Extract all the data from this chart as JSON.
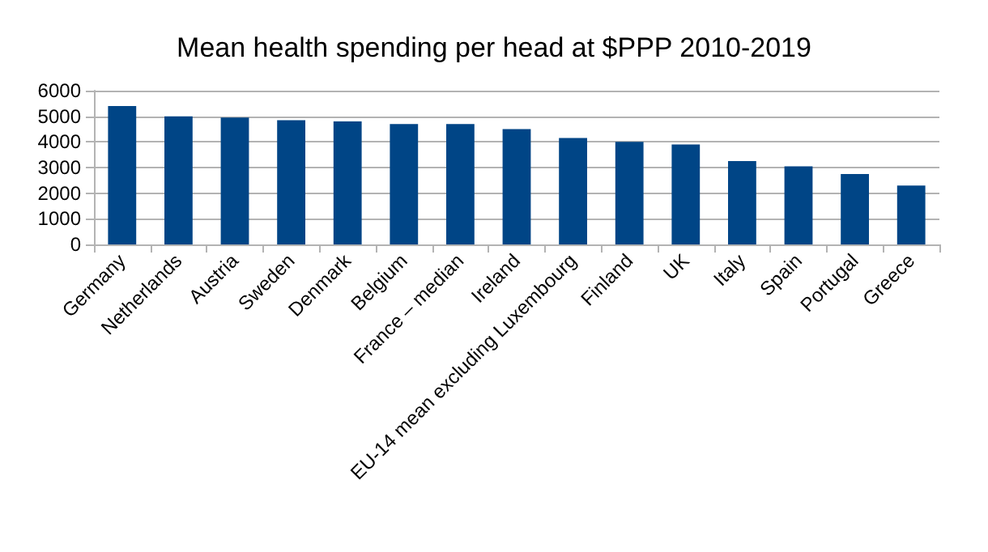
{
  "chart_data": {
    "type": "bar",
    "title": "Mean health spending per head at $PPP 2010-2019",
    "categories": [
      "Germany",
      "Netherlands",
      "Austria",
      "Sweden",
      "Denmark",
      "Belgium",
      "France – median",
      "Ireland",
      "EU-14 mean excluding Luxembourg",
      "Finland",
      "UK",
      "Italy",
      "Spain",
      "Portugal",
      "Greece"
    ],
    "values": [
      5400,
      5000,
      4950,
      4850,
      4800,
      4700,
      4700,
      4500,
      4150,
      4000,
      3900,
      3250,
      3050,
      2750,
      2300
    ],
    "color": "#004586",
    "ylim": [
      0,
      6000
    ],
    "yticks": [
      0,
      1000,
      2000,
      3000,
      4000,
      5000,
      6000
    ],
    "grid": true
  }
}
